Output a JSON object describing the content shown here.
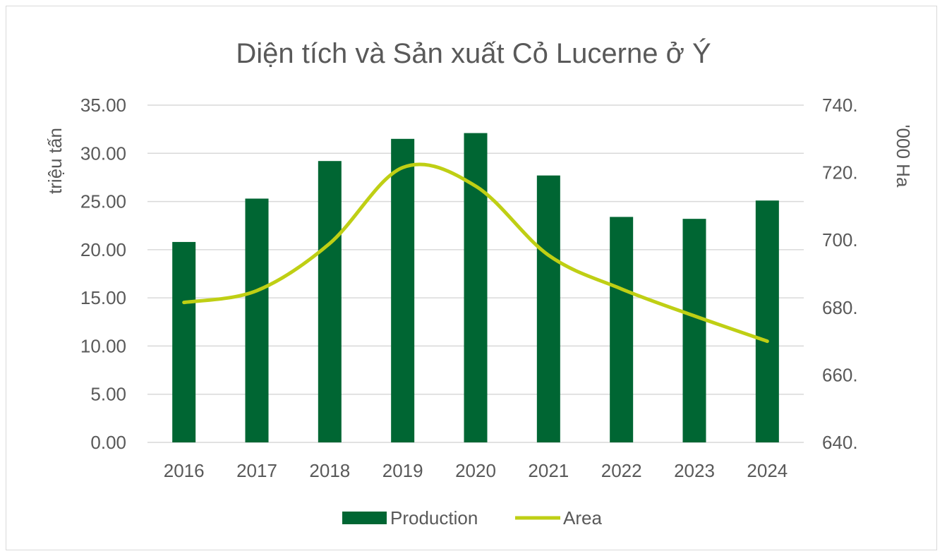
{
  "chart_data": {
    "type": "bar",
    "title": "Diện tích và Sản xuất Cỏ Lucerne ở Ý",
    "categories": [
      "2016",
      "2017",
      "2018",
      "2019",
      "2020",
      "2021",
      "2022",
      "2023",
      "2024"
    ],
    "series": [
      {
        "name": "Production",
        "type": "bar",
        "axis": "left",
        "color": "#006633",
        "values": [
          20.8,
          25.3,
          29.2,
          31.5,
          32.1,
          27.7,
          23.4,
          23.2,
          25.1
        ]
      },
      {
        "name": "Area",
        "type": "line",
        "axis": "right",
        "smooth": true,
        "color": "#BFCF14",
        "values": [
          681.5,
          685.0,
          699.0,
          721.5,
          716.0,
          695.5,
          685.5,
          677.5,
          670.0
        ]
      }
    ],
    "y_left": {
      "label": "triệu tấn",
      "ylim": [
        0,
        35
      ],
      "ticks": [
        "0.00",
        "5.00",
        "10.00",
        "15.00",
        "20.00",
        "25.00",
        "30.00",
        "35.00"
      ]
    },
    "y_right": {
      "label": "'000 Ha",
      "ylim": [
        640,
        740
      ],
      "ticks": [
        "640.",
        "660.",
        "680.",
        "700.",
        "720.",
        "740."
      ]
    },
    "grid": true,
    "legend_position": "bottom"
  }
}
